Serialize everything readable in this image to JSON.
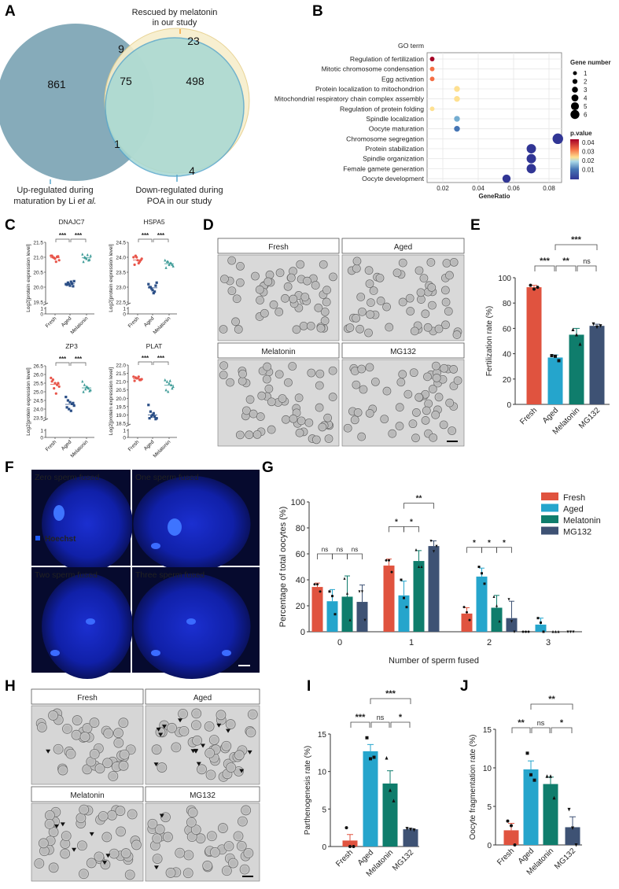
{
  "panels": {
    "A": "A",
    "B": "B",
    "C": "C",
    "D": "D",
    "E": "E",
    "F": "F",
    "G": "G",
    "H": "H",
    "I": "I",
    "J": "J"
  },
  "venn": {
    "sets": [
      {
        "label_line1": "Up-regulated during",
        "label_line2": "maturation by Li",
        "label_italic": "et al.",
        "color": "#7fa6b6"
      },
      {
        "label_line1": "Rescued by melatonin",
        "label_line2": "in our study",
        "color": "#f7eecb",
        "tick_color": "#f2a33a"
      },
      {
        "label_line1": "Down-regulated during",
        "label_line2": "POA in our study",
        "color": "#a6d8d3"
      }
    ],
    "counts": {
      "up_only": "861",
      "up_down_rescued": "75",
      "up_rescued": "9",
      "down_rescued": "498",
      "rescued_only": "23",
      "up_down": "1",
      "down_only": "4"
    }
  },
  "chart_data": [
    {
      "id": "B",
      "type": "scatter",
      "subtype": "dot-plot",
      "ylabel": "GO term",
      "xlabel": "GeneRatio",
      "xticks": [
        0.02,
        0.04,
        0.06,
        0.08
      ],
      "terms": [
        "Regulation of fertilization",
        "Mitotic chromosome condensation",
        "Egg activation",
        "Protein localization to mitochondrion",
        "Mitochondrial respiratory chain complex assembly",
        "Regulation of protein folding",
        "Spindle localization",
        "Oocyte maturation",
        "Chromosome segregation",
        "Protein stabilization",
        "Spindle organization",
        "Female gamete generation",
        "Oocyte development"
      ],
      "gene_ratio": [
        0.014,
        0.014,
        0.014,
        0.028,
        0.028,
        0.014,
        0.028,
        0.028,
        0.085,
        0.07,
        0.07,
        0.07,
        0.056
      ],
      "gene_number": [
        1,
        1,
        1,
        2,
        2,
        1,
        2,
        2,
        6,
        5,
        5,
        5,
        4
      ],
      "p_value": [
        0.045,
        0.037,
        0.036,
        0.026,
        0.026,
        0.022,
        0.012,
        0.006,
        0.003,
        0.002,
        0.002,
        0.002,
        0.003
      ],
      "size_legend_title": "Gene number",
      "size_legend": [
        1,
        2,
        3,
        4,
        5,
        6
      ],
      "color_legend_title": "p.value",
      "color_legend_ticks": [
        0.04,
        0.03,
        0.02,
        0.01
      ],
      "color_scale": [
        "#313695",
        "#4575b4",
        "#74add1",
        "#abd9e9",
        "#fee090",
        "#fdae61",
        "#f46d43",
        "#d73027",
        "#a50026"
      ],
      "grid": true
    },
    {
      "id": "C",
      "type": "scatter",
      "subtype": "dot-plot-with-mean",
      "ylabel": "Log2[protein expression level]",
      "categories": [
        "Fresh",
        "Aged",
        "Melatonin"
      ],
      "colors": [
        "#e8554a",
        "#2b4f87",
        "#3f9c98"
      ],
      "panels": [
        {
          "title": "DNAJC7",
          "yticks": [
            "21.5",
            "21.0",
            "20.5",
            "20.0",
            "19.5"
          ],
          "ylim": [
            19.5,
            21.5
          ],
          "break_ticks": [
            "1",
            "0"
          ],
          "sig": [
            "***",
            "***"
          ],
          "points": [
            [
              21.05,
              21.0,
              20.95,
              21.02,
              20.9,
              21.05,
              20.98,
              20.85,
              21.03
            ],
            [
              20.1,
              20.15,
              20.05,
              20.12,
              20.2,
              20.08,
              20.1,
              20.18,
              20.03
            ],
            [
              21.1,
              21.0,
              20.95,
              20.9,
              21.05,
              20.85,
              20.98,
              21.08,
              20.92
            ]
          ]
        },
        {
          "title": "HSPA5",
          "yticks": [
            "24.5",
            "24.0",
            "23.5",
            "23.0",
            "22.5"
          ],
          "ylim": [
            22.5,
            24.5
          ],
          "break_ticks": [
            "1",
            "0"
          ],
          "sig": [
            "***",
            "***"
          ],
          "points": [
            [
              24.0,
              24.05,
              23.9,
              23.85,
              23.95,
              23.75,
              24.0,
              23.8,
              23.9
            ],
            [
              23.1,
              23.0,
              22.9,
              22.85,
              23.15,
              23.0,
              22.95,
              22.8,
              23.05
            ],
            [
              23.9,
              23.85,
              23.75,
              23.8,
              23.7,
              23.65,
              23.85,
              23.8,
              23.75
            ]
          ]
        },
        {
          "title": "ZP3",
          "yticks": [
            "26.5",
            "26.0",
            "25.5",
            "25.0",
            "24.5",
            "24.0",
            "23.5"
          ],
          "ylim": [
            23.5,
            26.5
          ],
          "break_ticks": [
            "1",
            "0"
          ],
          "sig": [
            "***",
            "***"
          ],
          "points": [
            [
              25.8,
              25.7,
              25.5,
              25.4,
              25.3,
              25.6,
              25.2,
              24.9,
              25.5
            ],
            [
              24.7,
              24.5,
              24.4,
              24.3,
              24.2,
              24.1,
              24.0,
              23.9,
              24.35
            ],
            [
              25.6,
              25.4,
              25.3,
              25.2,
              25.1,
              25.0,
              25.15,
              25.25,
              25.05
            ]
          ]
        },
        {
          "title": "PLAT",
          "yticks": [
            "22.0",
            "21.5",
            "21.0",
            "20.5",
            "20.0",
            "19.5",
            "19.0",
            "18.5"
          ],
          "ylim": [
            18.5,
            22.0
          ],
          "break_ticks": [
            "1",
            "0"
          ],
          "sig": [
            "***",
            "***"
          ],
          "points": [
            [
              21.3,
              21.25,
              21.2,
              21.1,
              21.15,
              21.05,
              21.2,
              21.3,
              21.1
            ],
            [
              19.6,
              19.2,
              19.0,
              18.9,
              18.8,
              18.8,
              18.9,
              19.1,
              18.75
            ],
            [
              21.1,
              21.0,
              20.9,
              20.8,
              20.7,
              20.5,
              20.4,
              21.05,
              20.6
            ]
          ]
        }
      ]
    },
    {
      "id": "E",
      "type": "bar",
      "ylabel": "Fertilization rate (%)",
      "ylim": [
        0,
        100
      ],
      "yticks": [
        0,
        20,
        40,
        60,
        80,
        100
      ],
      "categories": [
        "Fresh",
        "Aged",
        "Melatonin",
        "MG132"
      ],
      "values": [
        92.5,
        37,
        55,
        62
      ],
      "errors": [
        1.5,
        2,
        5,
        1.3
      ],
      "points": [
        [
          94,
          91,
          92.5
        ],
        [
          38.5,
          38,
          34.5
        ],
        [
          59,
          55,
          47.5
        ],
        [
          63.5,
          61,
          62
        ]
      ],
      "significance": [
        {
          "from": 0,
          "to": 1,
          "label": "***"
        },
        {
          "from": 1,
          "to": 2,
          "label": "**"
        },
        {
          "from": 2,
          "to": 3,
          "label": "ns"
        },
        {
          "from": 1,
          "to": 3,
          "label": "***",
          "upper": true
        }
      ]
    },
    {
      "id": "G",
      "type": "bar",
      "subtype": "grouped",
      "ylabel": "Percentage of total oocytes (%)",
      "xlabel": "Number of sperm fused",
      "ylim": [
        0,
        100
      ],
      "yticks": [
        0,
        20,
        40,
        60,
        80,
        100
      ],
      "categories": [
        "0",
        "1",
        "2",
        "3"
      ],
      "legend_position": "top-right",
      "series": [
        {
          "name": "Fresh",
          "values": [
            34.5,
            51,
            14,
            0
          ],
          "errors": [
            3,
            5,
            4.5,
            0
          ],
          "points": [
            [
              36.5,
              36.5,
              31
            ],
            [
              55,
              55,
              46
            ],
            [
              19,
              15,
              9
            ],
            [
              0,
              0,
              0
            ]
          ]
        },
        {
          "name": "Aged",
          "values": [
            23.5,
            28,
            42.5,
            5.5
          ],
          "errors": [
            9,
            11,
            6.5,
            5
          ],
          "points": [
            [
              31,
              27.5,
              13.5
            ],
            [
              40,
              26,
              19
            ],
            [
              50,
              45,
              37
            ],
            [
              10.5,
              7,
              0
            ]
          ]
        },
        {
          "name": "Melatonin",
          "values": [
            27,
            54.5,
            18.5,
            0
          ],
          "errors": [
            16,
            8,
            9.5,
            0
          ],
          "points": [
            [
              41,
              29.5,
              9
            ],
            [
              63,
              50,
              50
            ],
            [
              27,
              20,
              8
            ],
            [
              0,
              0,
              0
            ]
          ]
        },
        {
          "name": "MG132",
          "values": [
            23,
            66,
            10.5,
            0
          ],
          "errors": [
            13,
            4,
            13,
            0
          ],
          "points": [
            [
              31,
              31,
              9
            ],
            [
              70,
              62,
              66
            ],
            [
              25,
              8,
              0
            ],
            [
              0,
              0,
              0
            ]
          ]
        }
      ],
      "significance": [
        {
          "group": 0,
          "from": 0,
          "to": 1,
          "label": "ns"
        },
        {
          "group": 0,
          "from": 1,
          "to": 2,
          "label": "ns"
        },
        {
          "group": 0,
          "from": 2,
          "to": 3,
          "label": "ns"
        },
        {
          "group": 1,
          "from": 0,
          "to": 1,
          "label": "*"
        },
        {
          "group": 1,
          "from": 1,
          "to": 2,
          "label": "*"
        },
        {
          "group": 1,
          "from": 1,
          "to": 3,
          "label": "**",
          "upper": true
        },
        {
          "group": 2,
          "from": 0,
          "to": 1,
          "label": "*"
        },
        {
          "group": 2,
          "from": 1,
          "to": 2,
          "label": "*"
        },
        {
          "group": 2,
          "from": 2,
          "to": 3,
          "label": "*"
        }
      ]
    },
    {
      "id": "I",
      "type": "bar",
      "ylabel": "Parthenogenesis rate (%)",
      "ylim": [
        0,
        15
      ],
      "yticks": [
        0,
        5,
        10,
        15
      ],
      "categories": [
        "Fresh",
        "Aged",
        "Melatonin",
        "MG132"
      ],
      "values": [
        0.8,
        12.7,
        8.4,
        2.3
      ],
      "errors": [
        0.8,
        0.9,
        1.7,
        0.1
      ],
      "points": [
        [
          2.5,
          0,
          0
        ],
        [
          14.5,
          11.7,
          11.9
        ],
        [
          11.8,
          7.5,
          6.1
        ],
        [
          2.4,
          2.3,
          2.2
        ]
      ],
      "significance": [
        {
          "from": 0,
          "to": 1,
          "label": "***"
        },
        {
          "from": 1,
          "to": 2,
          "label": "ns"
        },
        {
          "from": 2,
          "to": 3,
          "label": "*"
        },
        {
          "from": 1,
          "to": 3,
          "label": "***",
          "upper": true
        }
      ]
    },
    {
      "id": "J",
      "type": "bar",
      "ylabel": "Oocyte fragmentation rate (%)",
      "ylim": [
        0,
        15
      ],
      "yticks": [
        0,
        5,
        10,
        15
      ],
      "categories": [
        "Fresh",
        "Aged",
        "Melatonin",
        "MG132"
      ],
      "values": [
        1.9,
        9.8,
        7.9,
        2.3
      ],
      "errors": [
        0.9,
        1.1,
        0.9,
        1.35
      ],
      "points": [
        [
          3.1,
          2.5,
          0
        ],
        [
          11.9,
          9.1,
          8.4
        ],
        [
          8.9,
          8.9,
          6.1
        ],
        [
          4.6,
          2.2,
          0
        ]
      ],
      "significance": [
        {
          "from": 0,
          "to": 1,
          "label": "**"
        },
        {
          "from": 1,
          "to": 2,
          "label": "ns"
        },
        {
          "from": 2,
          "to": 3,
          "label": "*"
        },
        {
          "from": 1,
          "to": 3,
          "label": "**",
          "upper": true
        }
      ]
    }
  ],
  "group_colors": {
    "Fresh": "#e0533f",
    "Aged": "#25a5cc",
    "Melatonin": "#0f7d6c",
    "MG132": "#3e5274"
  },
  "micro_D": {
    "labels": [
      "Fresh",
      "Aged",
      "Melatonin",
      "MG132"
    ]
  },
  "micro_F": {
    "labels": [
      "Zero sperm fused",
      "One sperm fused",
      "Two sperm fused",
      "Three sperm fused"
    ],
    "stain": "Hoechst",
    "stain_color": "#1e5bff"
  },
  "micro_H": {
    "labels": [
      "Fresh",
      "Aged",
      "Melatonin",
      "MG132"
    ]
  }
}
